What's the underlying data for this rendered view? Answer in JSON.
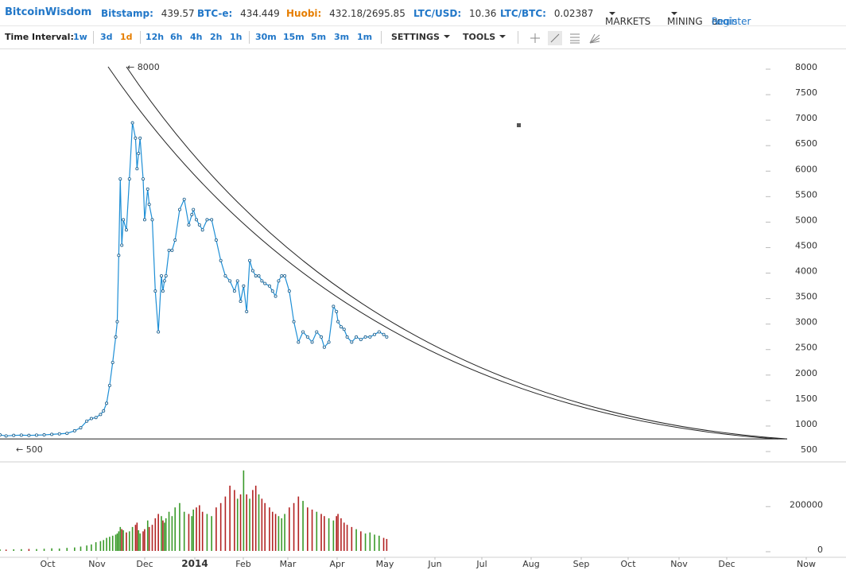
{
  "header": {
    "logo": "BitcoinWisdom",
    "markets": [
      {
        "label": "Bitstamp:",
        "value": "439.57"
      },
      {
        "label": "BTC-e:",
        "value": "434.449"
      },
      {
        "label": "Huobi:",
        "value": "432.18/2695.85"
      },
      {
        "label": "LTC/USD:",
        "value": "10.36"
      },
      {
        "label": "LTC/BTC:",
        "value": "0.02387"
      }
    ],
    "markets_menu": "MARKETS",
    "mining_menu": "MINING",
    "login": "Login",
    "or": "or",
    "register": "Register"
  },
  "toolbar": {
    "time_interval_label": "Time Interval:",
    "intervals": [
      "1w",
      "3d",
      "1d",
      "12h",
      "6h",
      "4h",
      "2h",
      "1h",
      "30m",
      "15m",
      "5m",
      "3m",
      "1m"
    ],
    "active_interval": "1d",
    "settings": "SETTINGS",
    "tools": "TOOLS",
    "tool_icons": [
      "crosshair-icon",
      "line-tool-icon",
      "fibonacci-tool-icon",
      "fan-tool-icon"
    ]
  },
  "colors": {
    "brand": "#2177c8",
    "active": "#e67e00",
    "price_line": "#1e8fd6",
    "up": "#3a9a2a",
    "down": "#b22222"
  },
  "chart_data": {
    "type": "line",
    "price_axis": {
      "ticks": [
        500,
        1000,
        1500,
        2000,
        2500,
        3000,
        3500,
        4000,
        4500,
        5000,
        5500,
        6000,
        6500,
        7000,
        7500,
        8000
      ],
      "min": 300,
      "max": 8100
    },
    "volume_axis": {
      "ticks": [
        0,
        200000
      ],
      "max": 380000
    },
    "x_axis": {
      "labels": [
        "Oct",
        "Nov",
        "Dec",
        "2014",
        "Feb",
        "Mar",
        "Apr",
        "May",
        "Jun",
        "Jul",
        "Aug",
        "Sep",
        "Oct",
        "Nov",
        "Dec",
        "Now"
      ],
      "start": "2013-09-01",
      "end": "2015-01-31"
    },
    "annotations": [
      "← 8000",
      "← 500"
    ],
    "series": [
      {
        "type": "line",
        "x": [
          "2013-09-01",
          "2013-09-05",
          "2013-09-10",
          "2013-09-15",
          "2013-09-20",
          "2013-09-25",
          "2013-09-30",
          "2013-10-05",
          "2013-10-10",
          "2013-10-15",
          "2013-10-20",
          "2013-10-24",
          "2013-10-28",
          "2013-10-31",
          "2013-11-03",
          "2013-11-06",
          "2013-11-08",
          "2013-11-10",
          "2013-11-12",
          "2013-11-14",
          "2013-11-16",
          "2013-11-17",
          "2013-11-18",
          "2013-11-19",
          "2013-11-20",
          "2013-11-21",
          "2013-11-23",
          "2013-11-25",
          "2013-11-27",
          "2013-11-29",
          "2013-11-30",
          "2013-12-01",
          "2013-12-02",
          "2013-12-04",
          "2013-12-05",
          "2013-12-07",
          "2013-12-08",
          "2013-12-10",
          "2013-12-12",
          "2013-12-14",
          "2013-12-16",
          "2013-12-17",
          "2013-12-18",
          "2013-12-19",
          "2013-12-21",
          "2013-12-23",
          "2013-12-25",
          "2013-12-28",
          "2013-12-31",
          "2014-01-03",
          "2014-01-05",
          "2014-01-06",
          "2014-01-08",
          "2014-01-10",
          "2014-01-12",
          "2014-01-15",
          "2014-01-18",
          "2014-01-21",
          "2014-01-24",
          "2014-01-27",
          "2014-01-30",
          "2014-02-02",
          "2014-02-04",
          "2014-02-06",
          "2014-02-08",
          "2014-02-10",
          "2014-02-12",
          "2014-02-14",
          "2014-02-16",
          "2014-02-18",
          "2014-02-20",
          "2014-02-22",
          "2014-02-25",
          "2014-02-27",
          "2014-03-01",
          "2014-03-03",
          "2014-03-05",
          "2014-03-07",
          "2014-03-10",
          "2014-03-13",
          "2014-03-16",
          "2014-03-19",
          "2014-03-22",
          "2014-03-25",
          "2014-03-28",
          "2014-03-31",
          "2014-04-02",
          "2014-04-05",
          "2014-04-08",
          "2014-04-10",
          "2014-04-11",
          "2014-04-13",
          "2014-04-15",
          "2014-04-17",
          "2014-04-20",
          "2014-04-23",
          "2014-04-26",
          "2014-04-29",
          "2014-05-02",
          "2014-05-05",
          "2014-05-08",
          "2014-05-11",
          "2014-05-13"
        ],
        "y": [
          780,
          760,
          770,
          775,
          770,
          775,
          780,
          790,
          800,
          810,
          860,
          920,
          1050,
          1100,
          1120,
          1180,
          1250,
          1400,
          1750,
          2200,
          2700,
          3000,
          4300,
          5800,
          4500,
          5000,
          4800,
          5800,
          6900,
          6600,
          6000,
          6300,
          6600,
          5800,
          5000,
          5600,
          5300,
          5000,
          3600,
          2800,
          3900,
          3600,
          3800,
          3900,
          4400,
          4400,
          4600,
          5200,
          5400,
          4900,
          5100,
          5200,
          5000,
          4900,
          4800,
          5000,
          5000,
          4600,
          4200,
          3900,
          3800,
          3600,
          3800,
          3400,
          3700,
          3200,
          4200,
          4000,
          3900,
          3900,
          3800,
          3750,
          3700,
          3600,
          3500,
          3800,
          3900,
          3900,
          3600,
          3000,
          2600,
          2800,
          2700,
          2600,
          2800,
          2700,
          2500,
          2600,
          3300,
          3200,
          3000,
          2900,
          2850,
          2700,
          2600,
          2700,
          2650,
          2700,
          2700,
          2750,
          2800,
          2750,
          2700
        ]
      },
      {
        "type": "volume",
        "values": [
          7000,
          6000,
          7500,
          8000,
          9000,
          8500,
          10000,
          12000,
          11000,
          14000,
          16000,
          20000,
          25000,
          30000,
          40000,
          45000,
          50000,
          60000,
          65000,
          70000,
          75000,
          80000,
          90000,
          110000,
          100000,
          95000,
          85000,
          90000,
          110000,
          120000,
          130000,
          95000,
          80000,
          90000,
          100000,
          140000,
          110000,
          120000,
          150000,
          170000,
          160000,
          140000,
          130000,
          150000,
          180000,
          160000,
          200000,
          220000,
          180000,
          170000,
          160000,
          190000,
          200000,
          210000,
          180000,
          170000,
          160000,
          200000,
          220000,
          250000,
          300000,
          280000,
          240000,
          260000,
          370000,
          260000,
          240000,
          280000,
          300000,
          260000,
          240000,
          220000,
          200000,
          180000,
          170000,
          160000,
          150000,
          170000,
          200000,
          220000,
          250000,
          230000,
          200000,
          190000,
          180000,
          170000,
          160000,
          150000,
          140000,
          160000,
          170000,
          150000,
          130000,
          120000,
          110000,
          100000,
          90000,
          80000,
          85000,
          75000,
          70000,
          60000,
          55000
        ]
      }
    ],
    "trendlines": [
      {
        "type": "curve",
        "from": [
          "2013-11-11",
          8000
        ],
        "to": [
          "2015-01-25",
          700
        ]
      },
      {
        "type": "curve",
        "from": [
          "2013-11-23",
          8000
        ],
        "to": [
          "2015-01-31",
          700
        ]
      },
      {
        "type": "line",
        "from": [
          "2013-09-01",
          700
        ],
        "to": [
          "2015-01-31",
          700
        ]
      }
    ]
  }
}
